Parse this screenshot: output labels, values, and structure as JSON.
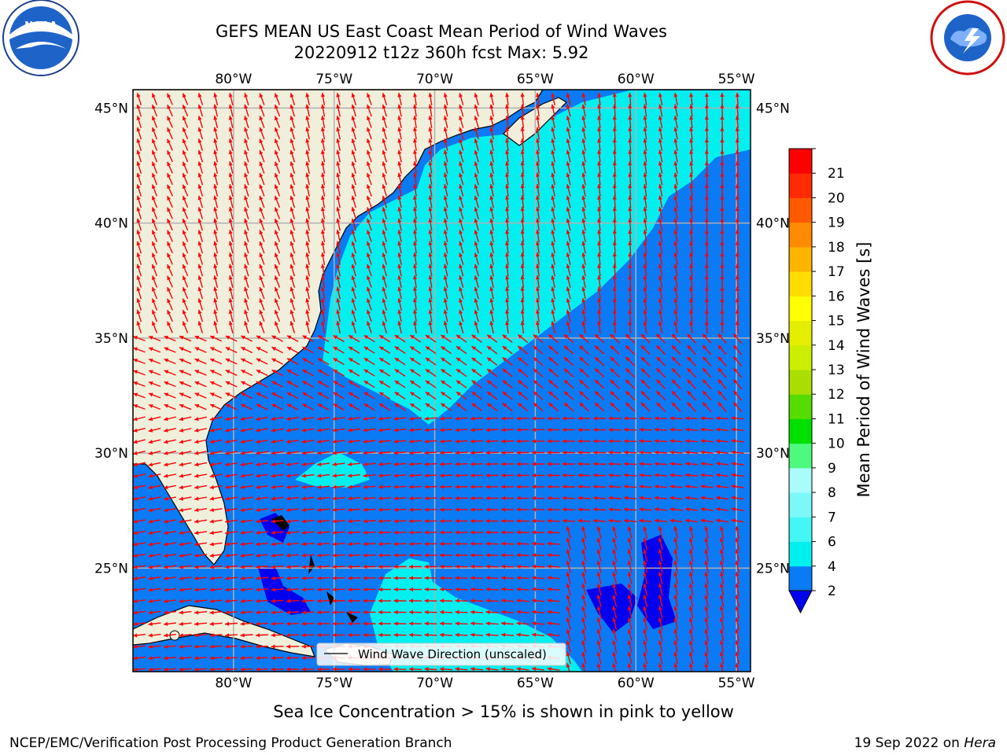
{
  "title": {
    "line1": "GEFS MEAN US East Coast Mean Period of Wind Waves",
    "line2": "20220912 t12z 360h fcst   Max: 5.92"
  },
  "logos": {
    "left": {
      "name": "noaa-logo",
      "text": "NOAA"
    },
    "right": {
      "name": "nws-logo",
      "text": "NATIONAL WEATHER SERVICE"
    }
  },
  "map": {
    "lon_labels": [
      "80°W",
      "75°W",
      "70°W",
      "65°W",
      "60°W",
      "55°W"
    ],
    "lon_values": [
      -80,
      -75,
      -70,
      -65,
      -60,
      -55
    ],
    "lat_labels": [
      "45°N",
      "40°N",
      "35°N",
      "30°N",
      "25°N"
    ],
    "lat_values": [
      45,
      40,
      35,
      30,
      25
    ],
    "lon_range": [
      -85,
      -54.3
    ],
    "lat_range": [
      20.5,
      45.8
    ],
    "colors": {
      "land": "#efefdc",
      "ocean_2_4": "#0a7af5",
      "ocean_4_6": "#00f0f0",
      "ocean_below_2": "#0000f0",
      "arrow": "#ff0000",
      "grid": "#b0b0b0"
    },
    "legend": "Wind Wave Direction (unscaled)"
  },
  "colorbar": {
    "title": "Mean Period of Wind Waves [s]",
    "ticks": [
      "2",
      "4",
      "6",
      "7",
      "8",
      "9",
      "10",
      "11",
      "12",
      "13",
      "14",
      "15",
      "16",
      "17",
      "18",
      "19",
      "20",
      "21"
    ],
    "levels": [
      2,
      4,
      6,
      7,
      8,
      9,
      10,
      11,
      12,
      13,
      14,
      15,
      16,
      17,
      18,
      19,
      20,
      21
    ],
    "colors": [
      "#0a7af5",
      "#00f0f0",
      "#44f6f6",
      "#7cf8f8",
      "#aafcfc",
      "#4dfa7e",
      "#00e000",
      "#55dd00",
      "#aadd00",
      "#ccee00",
      "#e6ee00",
      "#ffff00",
      "#ffdd00",
      "#ffb400",
      "#ff8c00",
      "#ff5a00",
      "#ff2a00",
      "#ff0000"
    ],
    "under_color": "#0000f0"
  },
  "note": "Sea Ice Concentration > 15% is shown in pink to yellow",
  "footer": {
    "left": "NCEP/EMC/Verification Post Processing Product Generation Branch",
    "right_prefix": "19 Sep 2022 on ",
    "right_machine": "Hera"
  }
}
